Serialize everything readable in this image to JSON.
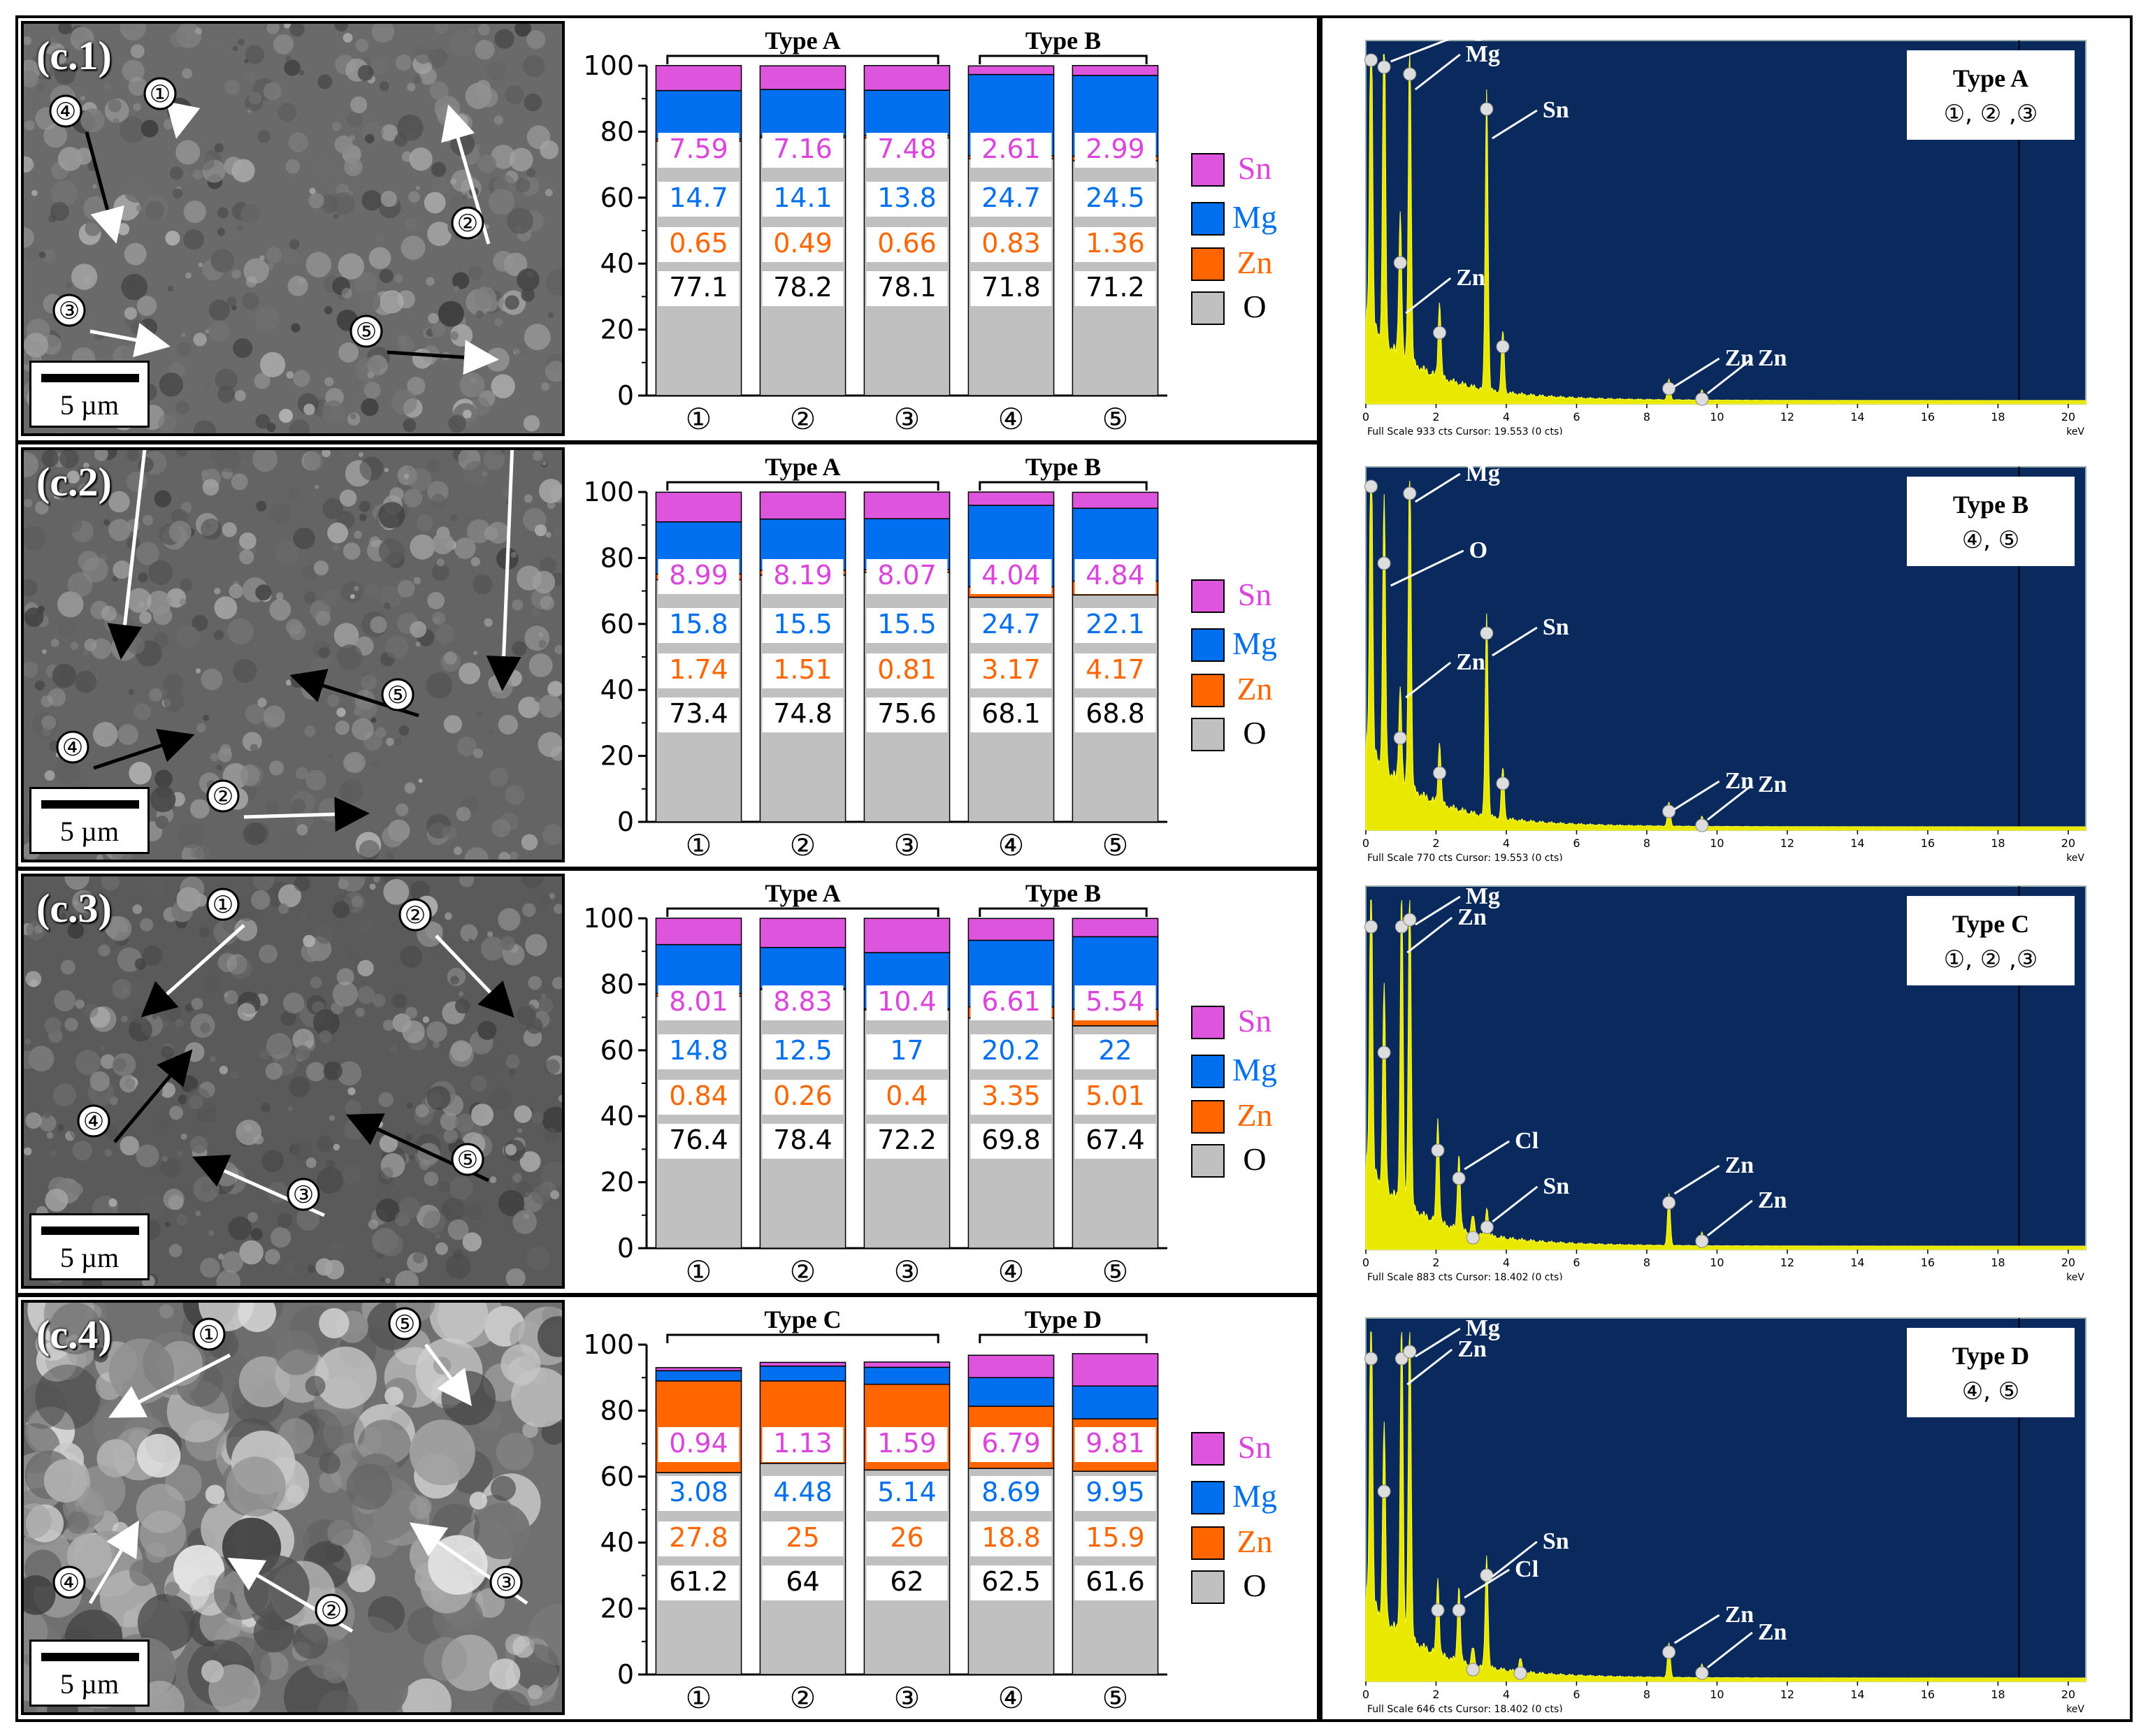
{
  "panels": [
    {
      "sem_label": "(c.1)",
      "scale": "5 µm",
      "sites": [
        "①",
        "②",
        "③",
        "④",
        "⑤"
      ]
    },
    {
      "sem_label": "(c.2)",
      "scale": "5 µm",
      "sites": [
        "①",
        "②",
        "③",
        "④",
        "⑤"
      ]
    },
    {
      "sem_label": "(c.3)",
      "scale": "5 µm",
      "sites": [
        "①",
        "②",
        "③",
        "④",
        "⑤"
      ]
    },
    {
      "sem_label": "(c.4)",
      "scale": "5 µm",
      "sites": [
        "①",
        "②",
        "③",
        "④",
        "⑤"
      ]
    }
  ],
  "chart_data": [
    {
      "type": "bar",
      "stacked": true,
      "categories": [
        "①",
        "②",
        "③",
        "④",
        "⑤"
      ],
      "group_labels": [
        {
          "label": "Type A",
          "span": [
            0,
            2
          ]
        },
        {
          "label": "Type B",
          "span": [
            3,
            4
          ]
        }
      ],
      "series": [
        {
          "name": "O",
          "color": "#c0c0c0",
          "label_color": "#000000",
          "values": [
            77.1,
            78.2,
            78.1,
            71.8,
            71.2
          ]
        },
        {
          "name": "Zn",
          "color": "#ff6600",
          "label_color": "#ff6600",
          "values": [
            0.65,
            0.49,
            0.66,
            0.83,
            1.36
          ]
        },
        {
          "name": "Mg",
          "color": "#0070f0",
          "label_color": "#0070f0",
          "values": [
            14.7,
            14.1,
            13.8,
            24.7,
            24.5
          ]
        },
        {
          "name": "Sn",
          "color": "#dd55dd",
          "label_color": "#dd44dd",
          "values": [
            7.59,
            7.16,
            7.48,
            2.61,
            2.99
          ]
        }
      ],
      "yticks": [
        0,
        20,
        40,
        60,
        80,
        100
      ],
      "ylim": [
        0,
        100
      ]
    },
    {
      "type": "bar",
      "stacked": true,
      "categories": [
        "①",
        "②",
        "③",
        "④",
        "⑤"
      ],
      "group_labels": [
        {
          "label": "Type A",
          "span": [
            0,
            2
          ]
        },
        {
          "label": "Type B",
          "span": [
            3,
            4
          ]
        }
      ],
      "series": [
        {
          "name": "O",
          "color": "#c0c0c0",
          "label_color": "#000000",
          "values": [
            73.4,
            74.8,
            75.6,
            68.1,
            68.8
          ]
        },
        {
          "name": "Zn",
          "color": "#ff6600",
          "label_color": "#ff6600",
          "values": [
            1.74,
            1.51,
            0.81,
            3.17,
            4.17
          ]
        },
        {
          "name": "Mg",
          "color": "#0070f0",
          "label_color": "#0070f0",
          "values": [
            15.8,
            15.5,
            15.5,
            24.7,
            22.1
          ]
        },
        {
          "name": "Sn",
          "color": "#dd55dd",
          "label_color": "#dd44dd",
          "values": [
            8.99,
            8.19,
            8.07,
            4.04,
            4.84
          ]
        }
      ],
      "yticks": [
        0,
        20,
        40,
        60,
        80,
        100
      ],
      "ylim": [
        0,
        100
      ]
    },
    {
      "type": "bar",
      "stacked": true,
      "categories": [
        "①",
        "②",
        "③",
        "④",
        "⑤"
      ],
      "group_labels": [
        {
          "label": "Type A",
          "span": [
            0,
            2
          ]
        },
        {
          "label": "Type B",
          "span": [
            3,
            4
          ]
        }
      ],
      "series": [
        {
          "name": "O",
          "color": "#c0c0c0",
          "label_color": "#000000",
          "values": [
            76.4,
            78.4,
            72.2,
            69.8,
            67.4
          ]
        },
        {
          "name": "Zn",
          "color": "#ff6600",
          "label_color": "#ff6600",
          "values": [
            0.84,
            0.26,
            0.4,
            3.35,
            5.01
          ]
        },
        {
          "name": "Mg",
          "color": "#0070f0",
          "label_color": "#0070f0",
          "values": [
            14.8,
            12.5,
            17,
            20.2,
            22
          ]
        },
        {
          "name": "Sn",
          "color": "#dd55dd",
          "label_color": "#dd44dd",
          "values": [
            8.01,
            8.83,
            10.4,
            6.61,
            5.54
          ]
        }
      ],
      "yticks": [
        0,
        20,
        40,
        60,
        80,
        100
      ],
      "ylim": [
        0,
        100
      ]
    },
    {
      "type": "bar",
      "stacked": true,
      "categories": [
        "①",
        "②",
        "③",
        "④",
        "⑤"
      ],
      "group_labels": [
        {
          "label": "Type C",
          "span": [
            0,
            2
          ]
        },
        {
          "label": "Type D",
          "span": [
            3,
            4
          ]
        }
      ],
      "series": [
        {
          "name": "O",
          "color": "#c0c0c0",
          "label_color": "#000000",
          "values": [
            61.2,
            64,
            62,
            62.5,
            61.6
          ]
        },
        {
          "name": "Zn",
          "color": "#ff6600",
          "label_color": "#ff6600",
          "values": [
            27.8,
            25,
            26,
            18.8,
            15.9
          ]
        },
        {
          "name": "Mg",
          "color": "#0070f0",
          "label_color": "#0070f0",
          "values": [
            3.08,
            4.48,
            5.14,
            8.69,
            9.95
          ]
        },
        {
          "name": "Sn",
          "color": "#dd55dd",
          "label_color": "#dd44dd",
          "values": [
            0.94,
            1.13,
            1.59,
            6.79,
            9.81
          ]
        }
      ],
      "yticks": [
        0,
        20,
        40,
        60,
        80,
        100
      ],
      "ylim": [
        0,
        100
      ]
    }
  ],
  "legend_order": [
    "Sn",
    "Mg",
    "Zn",
    "O"
  ],
  "eds": [
    {
      "type_label": "Type A",
      "sites": "①, ② ,③",
      "footer": "Full Scale 933 cts Cursor: 19.553  (0 cts)",
      "unit": "keV",
      "xticks": [
        0,
        2,
        4,
        6,
        8,
        10,
        12,
        14,
        16,
        18,
        20
      ],
      "peaks": [
        {
          "x": 0.15,
          "h": 1.0
        },
        {
          "x": 0.52,
          "h": 0.98
        },
        {
          "x": 0.98,
          "h": 0.42
        },
        {
          "x": 1.25,
          "h": 0.96
        },
        {
          "x": 2.1,
          "h": 0.22
        },
        {
          "x": 3.44,
          "h": 0.86
        },
        {
          "x": 3.9,
          "h": 0.18
        },
        {
          "x": 8.63,
          "h": 0.06
        },
        {
          "x": 9.57,
          "h": 0.03
        }
      ],
      "annotations": [
        {
          "text": "O",
          "x": 0.55,
          "h": 0.98
        },
        {
          "text": "Mg",
          "x": 1.25,
          "h": 0.9
        },
        {
          "text": "Sn",
          "x": 3.44,
          "h": 0.76
        },
        {
          "text": "Zn",
          "x": 0.98,
          "h": 0.26
        },
        {
          "text": "Zn",
          "x": 8.63,
          "h": 0.05
        },
        {
          "text": "Zn",
          "x": 9.57,
          "h": 0.03
        }
      ]
    },
    {
      "type_label": "Type B",
      "sites": "④, ⑤",
      "footer": "Full Scale 770 cts Cursor: 19.553  (0 cts)",
      "unit": "keV",
      "xticks": [
        0,
        2,
        4,
        6,
        8,
        10,
        12,
        14,
        16,
        18,
        20
      ],
      "peaks": [
        {
          "x": 0.15,
          "h": 1.0
        },
        {
          "x": 0.52,
          "h": 0.78
        },
        {
          "x": 0.98,
          "h": 0.28
        },
        {
          "x": 1.25,
          "h": 0.98
        },
        {
          "x": 2.1,
          "h": 0.18
        },
        {
          "x": 3.44,
          "h": 0.58
        },
        {
          "x": 3.9,
          "h": 0.15
        },
        {
          "x": 8.63,
          "h": 0.07
        },
        {
          "x": 9.57,
          "h": 0.03
        }
      ],
      "annotations": [
        {
          "text": "Mg",
          "x": 1.25,
          "h": 0.94
        },
        {
          "text": "O",
          "x": 0.55,
          "h": 0.7
        },
        {
          "text": "Sn",
          "x": 3.44,
          "h": 0.5
        },
        {
          "text": "Zn",
          "x": 0.98,
          "h": 0.38
        },
        {
          "text": "Zn",
          "x": 8.63,
          "h": 0.06
        },
        {
          "text": "Zn",
          "x": 9.57,
          "h": 0.03
        }
      ]
    },
    {
      "type_label": "Type C",
      "sites": "①, ② ,③",
      "footer": "Full Scale 883 cts Cursor: 18.402  (0 cts)",
      "unit": "keV",
      "xticks": [
        0,
        2,
        4,
        6,
        8,
        10,
        12,
        14,
        16,
        18,
        20
      ],
      "peaks": [
        {
          "x": 0.15,
          "h": 0.94
        },
        {
          "x": 0.52,
          "h": 0.58
        },
        {
          "x": 1.02,
          "h": 0.94
        },
        {
          "x": 1.25,
          "h": 0.96
        },
        {
          "x": 2.05,
          "h": 0.3
        },
        {
          "x": 2.65,
          "h": 0.22
        },
        {
          "x": 3.05,
          "h": 0.05
        },
        {
          "x": 3.45,
          "h": 0.08
        },
        {
          "x": 8.63,
          "h": 0.15
        },
        {
          "x": 9.57,
          "h": 0.04
        }
      ],
      "annotations": [
        {
          "text": "Mg",
          "x": 1.25,
          "h": 0.93
        },
        {
          "text": "Zn",
          "x": 1.02,
          "h": 0.85
        },
        {
          "text": "Cl",
          "x": 2.65,
          "h": 0.23
        },
        {
          "text": "Sn",
          "x": 3.45,
          "h": 0.08
        },
        {
          "text": "Zn",
          "x": 8.63,
          "h": 0.16
        },
        {
          "text": "Zn",
          "x": 9.57,
          "h": 0.04
        }
      ]
    },
    {
      "type_label": "Type D",
      "sites": "④, ⑤",
      "footer": "Full Scale 646 cts Cursor: 18.402  (0 cts)",
      "unit": "keV",
      "xticks": [
        0,
        2,
        4,
        6,
        8,
        10,
        12,
        14,
        16,
        18,
        20
      ],
      "peaks": [
        {
          "x": 0.15,
          "h": 0.94
        },
        {
          "x": 0.52,
          "h": 0.56
        },
        {
          "x": 1.02,
          "h": 0.94
        },
        {
          "x": 1.25,
          "h": 0.96
        },
        {
          "x": 2.05,
          "h": 0.22
        },
        {
          "x": 2.65,
          "h": 0.22
        },
        {
          "x": 3.05,
          "h": 0.05
        },
        {
          "x": 3.44,
          "h": 0.32
        },
        {
          "x": 4.4,
          "h": 0.04
        },
        {
          "x": 8.63,
          "h": 0.1
        },
        {
          "x": 9.57,
          "h": 0.04
        }
      ],
      "annotations": [
        {
          "text": "Mg",
          "x": 1.25,
          "h": 0.93
        },
        {
          "text": "Zn",
          "x": 1.02,
          "h": 0.85
        },
        {
          "text": "Cl",
          "x": 2.65,
          "h": 0.24
        },
        {
          "text": "Sn",
          "x": 3.44,
          "h": 0.3
        },
        {
          "text": "Zn",
          "x": 8.63,
          "h": 0.11
        },
        {
          "text": "Zn",
          "x": 9.57,
          "h": 0.04
        }
      ]
    }
  ]
}
